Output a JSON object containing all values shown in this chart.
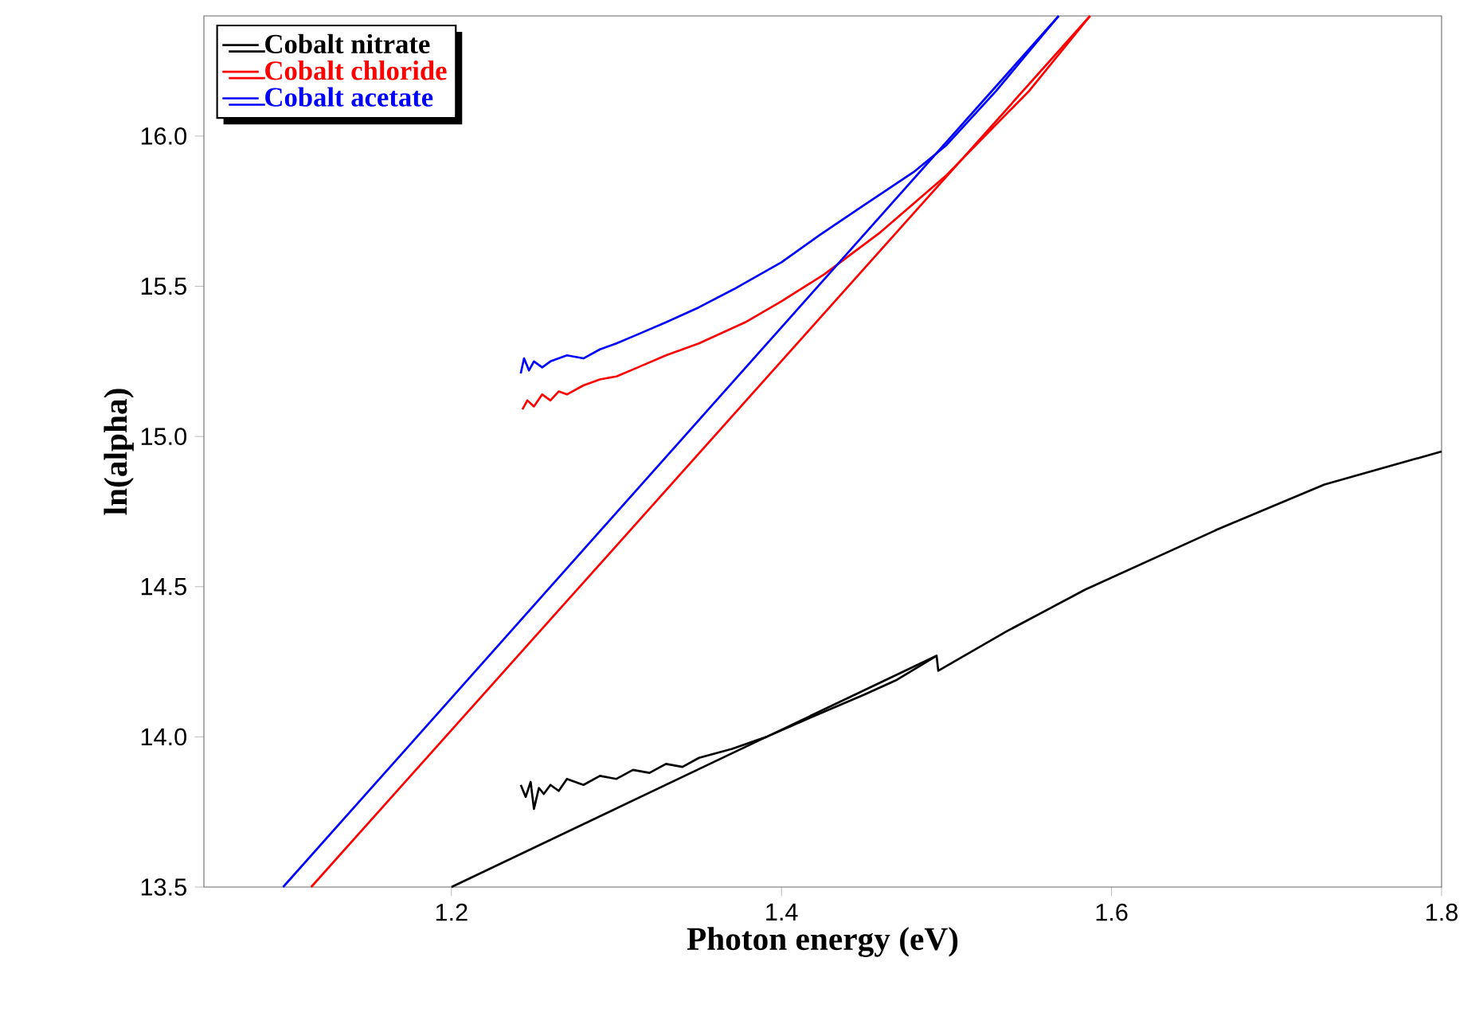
{
  "chart_data": {
    "type": "line",
    "xlabel": "Photon energy (eV)",
    "ylabel": "ln(alpha)",
    "xlim": [
      1.05,
      1.8
    ],
    "ylim": [
      13.5,
      16.4
    ],
    "xticks": [
      1.2,
      1.4,
      1.6,
      1.8
    ],
    "yticks": [
      13.5,
      {
        "value": 14,
        "label": "14.0"
      },
      14.5,
      {
        "value": 15,
        "label": "15.0"
      },
      15.5,
      {
        "value": 16,
        "label": "16.0"
      }
    ],
    "legend": "top left",
    "grid": false,
    "marker": "none",
    "line_style": "solid",
    "series": [
      {
        "name": "Cobalt nitrate",
        "color": "#000000",
        "x": [
          1.242,
          1.245,
          1.248,
          1.25,
          1.253,
          1.256,
          1.26,
          1.265,
          1.27,
          1.28,
          1.29,
          1.3,
          1.31,
          1.32,
          1.33,
          1.34,
          1.35,
          1.37,
          1.391,
          1.42,
          1.45,
          1.47,
          1.494,
          1.495,
          1.536,
          1.584,
          1.664,
          1.729,
          1.8
        ],
        "values": [
          13.84,
          13.8,
          13.85,
          13.76,
          13.83,
          13.81,
          13.84,
          13.82,
          13.86,
          13.84,
          13.87,
          13.86,
          13.89,
          13.88,
          13.91,
          13.9,
          13.93,
          13.96,
          14.0,
          14.07,
          14.14,
          14.19,
          14.27,
          14.22,
          14.35,
          14.49,
          14.69,
          14.84,
          14.95
        ]
      },
      {
        "name": "Cobalt chloride",
        "color": "#ff0000",
        "x": [
          1.243,
          1.246,
          1.25,
          1.255,
          1.26,
          1.265,
          1.27,
          1.28,
          1.29,
          1.3,
          1.313,
          1.33,
          1.35,
          1.378,
          1.4,
          1.426,
          1.46,
          1.5,
          1.55,
          1.587
        ],
        "values": [
          15.09,
          15.12,
          15.1,
          15.14,
          15.12,
          15.15,
          15.14,
          15.17,
          15.19,
          15.2,
          15.23,
          15.27,
          15.31,
          15.38,
          15.45,
          15.54,
          15.68,
          15.87,
          16.15,
          16.4
        ]
      },
      {
        "name": "Cobalt acetate",
        "color": "#0000ff",
        "x": [
          1.242,
          1.244,
          1.247,
          1.25,
          1.255,
          1.26,
          1.27,
          1.28,
          1.29,
          1.3,
          1.313,
          1.33,
          1.35,
          1.371,
          1.4,
          1.423,
          1.45,
          1.48,
          1.5,
          1.53,
          1.568
        ],
        "values": [
          15.21,
          15.26,
          15.22,
          15.25,
          15.23,
          15.25,
          15.27,
          15.26,
          15.29,
          15.31,
          15.34,
          15.38,
          15.43,
          15.49,
          15.58,
          15.67,
          15.77,
          15.88,
          15.97,
          16.15,
          16.4
        ]
      },
      {
        "color": "#000000",
        "x": [
          1.494,
          1.2
        ],
        "values": [
          14.27,
          13.5
        ]
      },
      {
        "color": "#ff0000",
        "x": [
          1.587,
          1.115
        ],
        "values": [
          16.4,
          13.5
        ]
      },
      {
        "color": "#0000ff",
        "x": [
          1.568,
          1.098
        ],
        "values": [
          16.4,
          13.5
        ]
      }
    ]
  }
}
